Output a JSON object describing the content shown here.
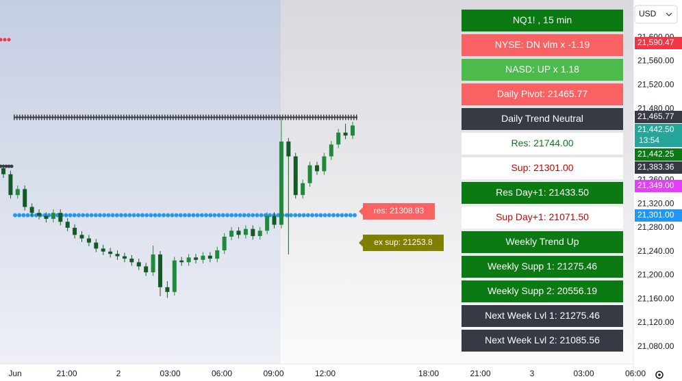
{
  "chart_data": {
    "type": "candlestick",
    "ylim": [
      21051,
      21663
    ],
    "yticks": [
      {
        "value": 21600,
        "label": "21,600.00"
      },
      {
        "value": 21560,
        "label": "21,560.00"
      },
      {
        "value": 21520,
        "label": "21,520.00"
      },
      {
        "value": 21480,
        "label": "21,480.00"
      },
      {
        "value": 21360,
        "label": "21,360.00"
      },
      {
        "value": 21320,
        "label": "21,320.00"
      },
      {
        "value": 21280,
        "label": "21,280.00"
      },
      {
        "value": 21240,
        "label": "21,240.00"
      },
      {
        "value": 21200,
        "label": "21,200.00"
      },
      {
        "value": 21160,
        "label": "21,160.00"
      },
      {
        "value": 21120,
        "label": "21,120.00"
      },
      {
        "value": 21080,
        "label": "21,080.00"
      }
    ],
    "x_axis_labels": [
      "Jun",
      "21:00",
      "2",
      "03:00",
      "06:00",
      "09:00",
      "12:00",
      "",
      "18:00",
      "21:00",
      "3",
      "03:00",
      "06:00"
    ],
    "up_color": "#1f8a3b",
    "down_color": "#145a26",
    "candles": [
      [
        21380,
        21386,
        21364,
        21370
      ],
      [
        21370,
        21376,
        21329,
        21335
      ],
      [
        21335,
        21351,
        21329,
        21345
      ],
      [
        21345,
        21351,
        21309,
        21315
      ],
      [
        21315,
        21321,
        21299,
        21305
      ],
      [
        21305,
        21311,
        21294,
        21300
      ],
      [
        21300,
        21306,
        21289,
        21295
      ],
      [
        21295,
        21311,
        21289,
        21305
      ],
      [
        21305,
        21311,
        21284,
        21290
      ],
      [
        21290,
        21296,
        21274,
        21280
      ],
      [
        21280,
        21286,
        21262,
        21268
      ],
      [
        21268,
        21274,
        21256,
        21262
      ],
      [
        21262,
        21268,
        21249,
        21255
      ],
      [
        21255,
        21261,
        21239,
        21245
      ],
      [
        21245,
        21251,
        21234,
        21240
      ],
      [
        21240,
        21246,
        21230,
        21236
      ],
      [
        21236,
        21242,
        21226,
        21232
      ],
      [
        21232,
        21238,
        21222,
        21228
      ],
      [
        21228,
        21234,
        21216,
        21222
      ],
      [
        21222,
        21228,
        21209,
        21215
      ],
      [
        21215,
        21221,
        21199,
        21205
      ],
      [
        21205,
        21250,
        21199,
        21235
      ],
      [
        21235,
        21241,
        21165,
        21180
      ],
      [
        21180,
        21190,
        21162,
        21172
      ],
      [
        21172,
        21231,
        21166,
        21225
      ],
      [
        21225,
        21231,
        21216,
        21222
      ],
      [
        21222,
        21236,
        21216,
        21230
      ],
      [
        21230,
        21236,
        21220,
        21226
      ],
      [
        21226,
        21239,
        21220,
        21233
      ],
      [
        21233,
        21239,
        21222,
        21228
      ],
      [
        21228,
        21248,
        21222,
        21242
      ],
      [
        21242,
        21271,
        21236,
        21265
      ],
      [
        21265,
        21281,
        21259,
        21275
      ],
      [
        21275,
        21281,
        21262,
        21268
      ],
      [
        21268,
        21284,
        21262,
        21278
      ],
      [
        21278,
        21284,
        21260,
        21266
      ],
      [
        21266,
        21281,
        21260,
        21275
      ],
      [
        21275,
        21306,
        21269,
        21300
      ],
      [
        21300,
        21306,
        21279,
        21285
      ],
      [
        21285,
        21465,
        21279,
        21425
      ],
      [
        21425,
        21431,
        21235,
        21400
      ],
      [
        21400,
        21406,
        21329,
        21335
      ],
      [
        21335,
        21361,
        21329,
        21355
      ],
      [
        21355,
        21391,
        21349,
        21385
      ],
      [
        21385,
        21391,
        21369,
        21375
      ],
      [
        21375,
        21406,
        21369,
        21400
      ],
      [
        21400,
        21426,
        21394,
        21420
      ],
      [
        21420,
        21446,
        21414,
        21440
      ],
      [
        21440,
        21455,
        21429,
        21435
      ],
      [
        21435,
        21458,
        21429,
        21452
      ]
    ],
    "price_badges": [
      {
        "value": 21590.47,
        "label": "21,590.47",
        "color": "#f23645"
      },
      {
        "value": 21465.77,
        "label": "21,465.77",
        "color": "#363a45"
      },
      {
        "value": 21442.5,
        "label": "21,442.50",
        "sublabel": "13:54",
        "color": "#26a69a"
      },
      {
        "value": 21442.25,
        "label": "21,442.25",
        "color": "#0b7a12"
      },
      {
        "value": 21383.36,
        "label": "21,383.36",
        "color": "#363a45"
      },
      {
        "value": 21349,
        "label": "21,349.00",
        "color": "#e040fb"
      },
      {
        "value": 21301,
        "label": "21,301.00",
        "color": "#2196f3"
      }
    ],
    "chart_labels": [
      {
        "text": "res: 21308.93",
        "color": "#f96262"
      },
      {
        "text": "ex sup: 21253.8",
        "color": "#808000"
      }
    ]
  },
  "currency": "USD",
  "panel": [
    {
      "text": "NQ1! , 15 min",
      "bg": "#0b7a12",
      "fg": "#ffffff"
    },
    {
      "text": "NYSE: DN vlm x -1.19",
      "bg": "#f96262",
      "fg": "#ffffff"
    },
    {
      "text": "NASD: UP x 1.18",
      "bg": "#4cbb4c",
      "fg": "#ffffff"
    },
    {
      "text": "Daily Pivot: 21465.77",
      "bg": "#f96262",
      "fg": "#ffffff"
    },
    {
      "text": "Daily Trend Neutral",
      "bg": "#363a45",
      "fg": "#ffffff"
    },
    {
      "text": "Res: 21744.00",
      "bg": "#ffffff",
      "fg": "#0b7a12"
    },
    {
      "text": "Sup: 21301.00",
      "bg": "#ffffff",
      "fg": "#cc0000"
    },
    {
      "text": "Res Day+1: 21433.50",
      "bg": "#0b7a12",
      "fg": "#ffffff"
    },
    {
      "text": "Sup Day+1: 21071.50",
      "bg": "#ffffff",
      "fg": "#cc0000"
    },
    {
      "text": "Weekly Trend Up",
      "bg": "#0b7a12",
      "fg": "#ffffff"
    },
    {
      "text": "Weekly Supp 1: 21275.46",
      "bg": "#0b7a12",
      "fg": "#ffffff"
    },
    {
      "text": "Weekly Supp 2: 20556.19",
      "bg": "#0b7a12",
      "fg": "#ffffff"
    },
    {
      "text": "Next Week Lvl 1: 21275.46",
      "bg": "#363a45",
      "fg": "#ffffff"
    },
    {
      "text": "Next Week Lvl 2: 21085.56",
      "bg": "#363a45",
      "fg": "#ffffff"
    }
  ]
}
